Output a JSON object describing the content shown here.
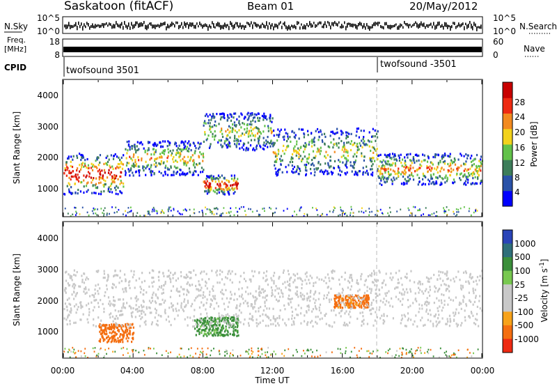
{
  "header": {
    "station": "Saskatoon (fitACF)",
    "beam": "Beam 01",
    "date": "20/May/2012"
  },
  "status_panels": {
    "nsky_label": "N.Sky",
    "nsearch_label": "N.Search",
    "freq_label_1": "Freq.",
    "freq_label_2": "[MHz]",
    "nave_label": "Nave",
    "cpid_label": "CPID",
    "noise_left_ticks": [
      "10^5",
      "10^0"
    ],
    "noise_right_ticks": [
      "10^5",
      "10^0"
    ],
    "freq_ticks": [
      "18",
      "8"
    ],
    "nave_ticks": [
      "60",
      "0"
    ],
    "cpid_segments": [
      {
        "label": "twofsound 3501",
        "start_hour": 0
      },
      {
        "label": "twofsound -3501",
        "start_hour": 18
      }
    ]
  },
  "chart_data": [
    {
      "type": "heatmap",
      "panel": "power",
      "ylabel": "Slant Range [km]",
      "xlabel": "",
      "x_range_hours": [
        0,
        24
      ],
      "ylim": [
        180,
        4500
      ],
      "yticks": [
        "1000",
        "2000",
        "3000",
        "4000"
      ],
      "colorbar_label": "Power [dB]",
      "colorbar_ticks": [
        "4",
        "8",
        "12",
        "16",
        "20",
        "24",
        "28"
      ],
      "colorbar_colors": [
        "#0000ff",
        "#2a52a8",
        "#3d7d5a",
        "#62c24a",
        "#f2d21c",
        "#f28a1f",
        "#ee2a12",
        "#c80000"
      ],
      "echo_bands": [
        {
          "t0": 0,
          "t1": 3.5,
          "r0": 900,
          "r1": 2200,
          "strength": 0.9
        },
        {
          "t0": 3.5,
          "t1": 8,
          "r0": 1500,
          "r1": 2600,
          "strength": 0.6
        },
        {
          "t0": 8,
          "t1": 12,
          "r0": 2300,
          "r1": 3500,
          "strength": 0.5
        },
        {
          "t0": 8,
          "t1": 10,
          "r0": 900,
          "r1": 1500,
          "strength": 0.9
        },
        {
          "t0": 12,
          "t1": 18,
          "r0": 1500,
          "r1": 3000,
          "strength": 0.5
        },
        {
          "t0": 18,
          "t1": 24,
          "r0": 1200,
          "r1": 2200,
          "strength": 0.65
        }
      ]
    },
    {
      "type": "heatmap",
      "panel": "velocity",
      "ylabel": "Slant Range [km]",
      "xlabel": "Time UT",
      "x_range_hours": [
        0,
        24
      ],
      "xticks": [
        "00:00",
        "04:00",
        "08:00",
        "12:00",
        "16:00",
        "20:00",
        "00:00"
      ],
      "ylim": [
        180,
        4500
      ],
      "yticks": [
        "1000",
        "2000",
        "3000",
        "4000"
      ],
      "colorbar_label": "Velocity [m s^-1]",
      "colorbar_ticks": [
        "1000",
        "500",
        "100",
        "25",
        "-25",
        "-100",
        "-500",
        "-1000"
      ],
      "colorbar_colors": [
        "#2a44b8",
        "#2f6f7a",
        "#3b8f3b",
        "#78c850",
        "#c8c8c8",
        "#c8c8c8",
        "#f7a21a",
        "#f46e10",
        "#ee2a12"
      ],
      "echo_bands": [
        {
          "t0": 2,
          "t1": 4,
          "r0": 700,
          "r1": 1300,
          "velocity": -300
        },
        {
          "t0": 7.5,
          "t1": 10,
          "r0": 900,
          "r1": 1500,
          "velocity": 150
        },
        {
          "t0": 15.5,
          "t1": 17.5,
          "r0": 1800,
          "r1": 2200,
          "velocity": -150
        },
        {
          "t0": 0,
          "t1": 24,
          "r0": 1200,
          "r1": 3000,
          "velocity": 0
        }
      ]
    }
  ]
}
